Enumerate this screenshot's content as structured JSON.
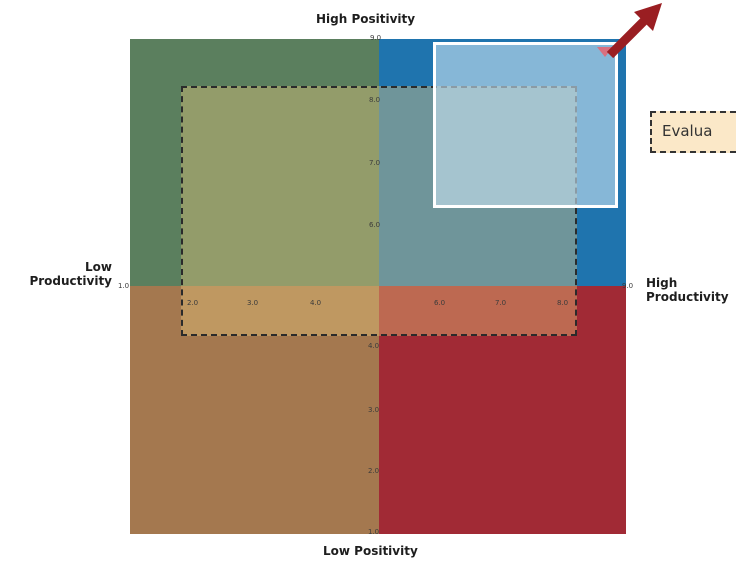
{
  "axes": {
    "top_label": "High Positivity",
    "bottom_label": "Low Positivity",
    "left_label_line1": "Low",
    "left_label_line2": "Productivity",
    "right_label_line1": "High",
    "right_label_line2": "Productivity"
  },
  "vertical_ticks": [
    "9.0",
    "8.0",
    "7.0",
    "6.0",
    "4.0",
    "3.0",
    "2.0",
    "1.0"
  ],
  "horizontal_ticks": [
    "1.0",
    "2.0",
    "3.0",
    "4.0",
    "6.0",
    "7.0",
    "8.0",
    "9.0"
  ],
  "callout": {
    "text": "Evalua"
  },
  "colors": {
    "quadrant_top_left": "#5b7f5e",
    "quadrant_top_right": "#1f74ae",
    "quadrant_bottom_left": "#a4784f",
    "quadrant_bottom_right": "#a12a35",
    "overlay_fill": "#e8c87d",
    "highlight_fill": "#c6e1f0",
    "arrow": "#9a1e22",
    "callout_fill": "#fbe8c8"
  }
}
